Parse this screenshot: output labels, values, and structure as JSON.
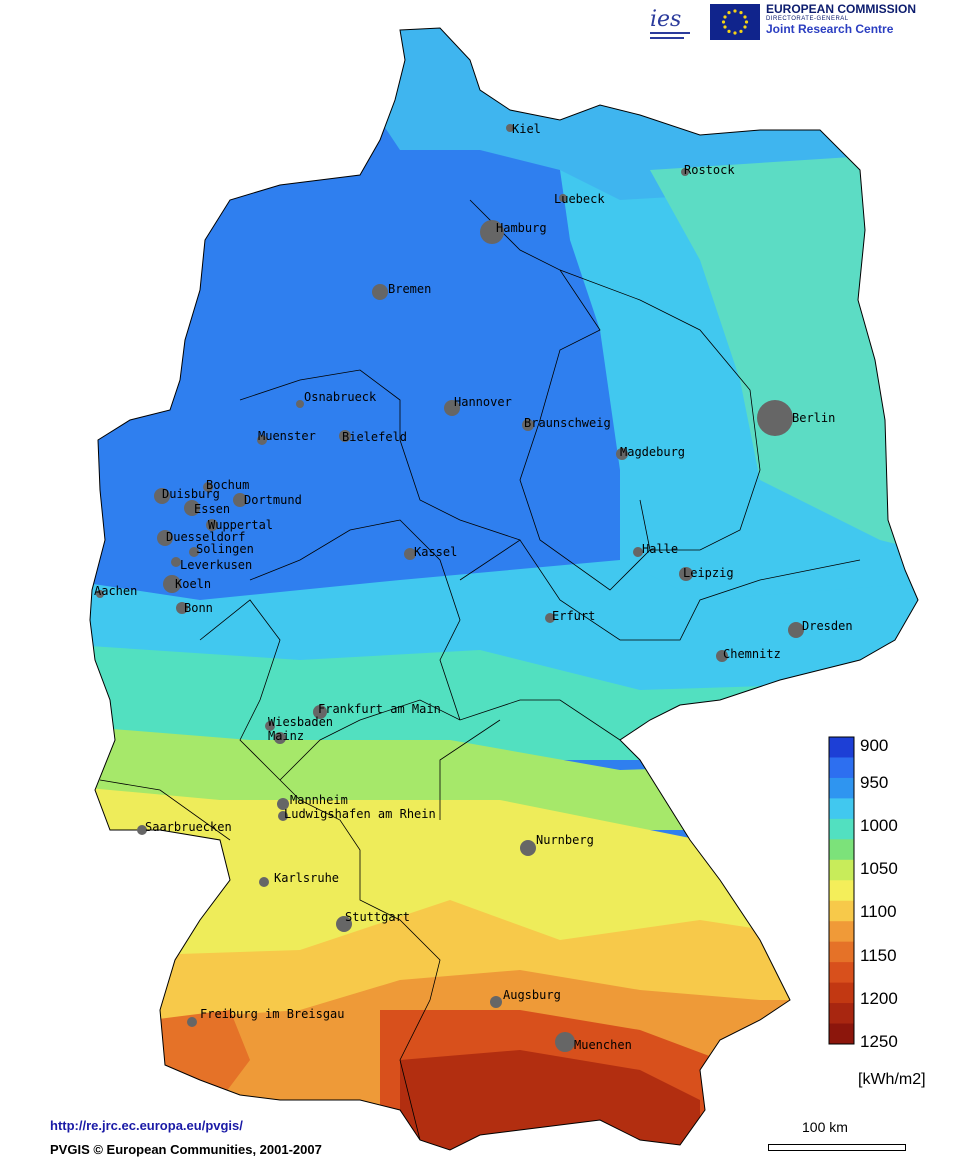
{
  "header": {
    "ies_logo_text": "ies",
    "ec_title": "EUROPEAN COMMISSION",
    "ec_subtitle": "DIRECTORATE-GENERAL",
    "ec_centre": "Joint Research Centre"
  },
  "legend": {
    "unit": "[kWh/m2]",
    "ticks": [
      "900",
      "950",
      "1000",
      "1050",
      "1100",
      "1150",
      "1200",
      "1250"
    ],
    "colors": [
      "#1d3fd6",
      "#2d6ff0",
      "#2f95f0",
      "#41c8ef",
      "#52e0c0",
      "#7ce27a",
      "#c8ec5a",
      "#f4ee5a",
      "#f7c94a",
      "#f09a38",
      "#e57228",
      "#d8501c",
      "#c23812",
      "#a82610",
      "#8c160c"
    ]
  },
  "cities": [
    {
      "name": "Kiel"
    },
    {
      "name": "Rostock"
    },
    {
      "name": "Luebeck"
    },
    {
      "name": "Hamburg"
    },
    {
      "name": "Bremen"
    },
    {
      "name": "Berlin"
    },
    {
      "name": "Osnabrueck"
    },
    {
      "name": "Hannover"
    },
    {
      "name": "Muenster"
    },
    {
      "name": "Bielefeld"
    },
    {
      "name": "Braunschweig"
    },
    {
      "name": "Magdeburg"
    },
    {
      "name": "Bochum"
    },
    {
      "name": "Duisburg"
    },
    {
      "name": "Dortmund"
    },
    {
      "name": "Essen"
    },
    {
      "name": "Wuppertal"
    },
    {
      "name": "Duesseldorf"
    },
    {
      "name": "Solingen"
    },
    {
      "name": "Leverkusen"
    },
    {
      "name": "Kassel"
    },
    {
      "name": "Halle"
    },
    {
      "name": "Leipzig"
    },
    {
      "name": "Aachen"
    },
    {
      "name": "Koeln"
    },
    {
      "name": "Bonn"
    },
    {
      "name": "Erfurt"
    },
    {
      "name": "Dresden"
    },
    {
      "name": "Chemnitz"
    },
    {
      "name": "Frankfurt am Main"
    },
    {
      "name": "Wiesbaden"
    },
    {
      "name": "Mainz"
    },
    {
      "name": "Mannheim"
    },
    {
      "name": "Ludwigshafen am Rhein"
    },
    {
      "name": "Saarbruecken"
    },
    {
      "name": "Nurnberg"
    },
    {
      "name": "Karlsruhe"
    },
    {
      "name": "Stuttgart"
    },
    {
      "name": "Augsburg"
    },
    {
      "name": "Freiburg im Breisgau"
    },
    {
      "name": "Muenchen"
    }
  ],
  "footer": {
    "url": "http://re.jrc.ec.europa.eu/pvgis/",
    "copyright": "PVGIS © European Communities, 2001-2007"
  },
  "scale": {
    "label": "100 km"
  }
}
